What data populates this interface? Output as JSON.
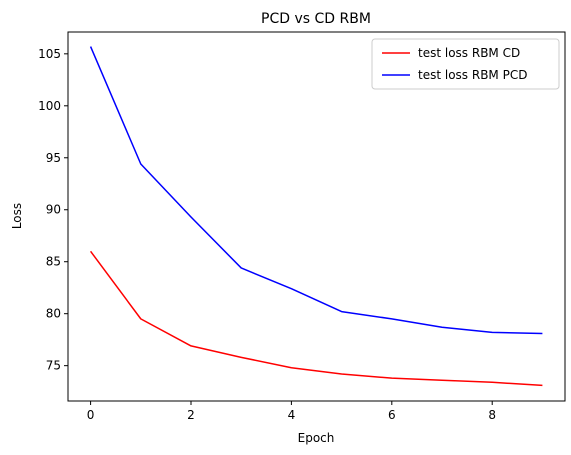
{
  "chart_data": {
    "type": "line",
    "title": "PCD vs CD RBM",
    "xlabel": "Epoch",
    "ylabel": "Loss",
    "xlim": [
      -0.45,
      9.45
    ],
    "ylim": [
      71.6,
      107.1
    ],
    "x": [
      0,
      1,
      2,
      3,
      4,
      5,
      6,
      7,
      8,
      9
    ],
    "xticks": [
      0,
      2,
      4,
      6,
      8
    ],
    "yticks": [
      75,
      80,
      85,
      90,
      95,
      100,
      105
    ],
    "grid": false,
    "legend_position": "top-right",
    "series": [
      {
        "name": "test loss RBM CD",
        "color": "#ff0000",
        "values": [
          86.0,
          79.5,
          76.9,
          75.8,
          74.8,
          74.2,
          73.8,
          73.6,
          73.4,
          73.1
        ]
      },
      {
        "name": "test loss RBM PCD",
        "color": "#0000ff",
        "values": [
          105.7,
          94.4,
          89.3,
          84.4,
          82.4,
          80.2,
          79.5,
          78.7,
          78.2,
          78.1
        ]
      }
    ]
  }
}
